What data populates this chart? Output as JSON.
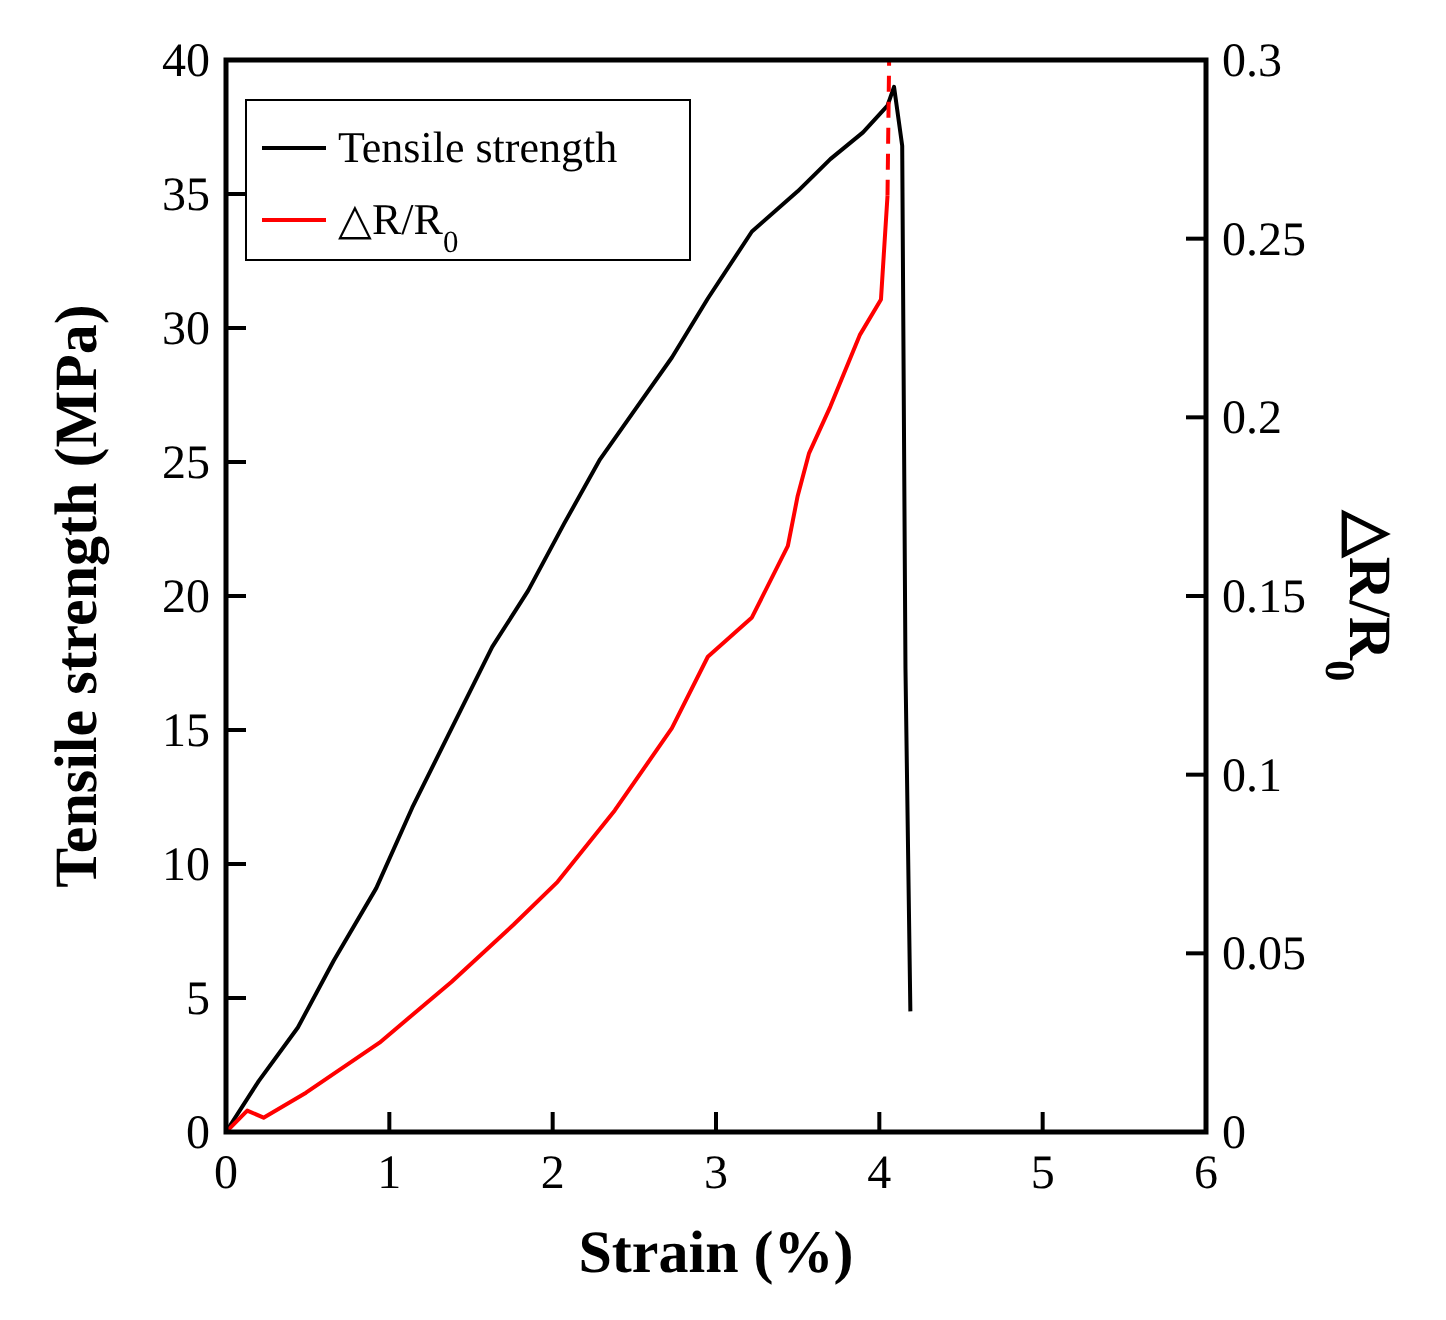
{
  "chart_data": {
    "type": "line",
    "xlabel": "Strain (%)",
    "ylabel": "Tensile strength (MPa)",
    "y2label": "△R/R$_{0}$",
    "xlim": [
      0,
      6
    ],
    "xticks": [
      0,
      1,
      2,
      3,
      4,
      5,
      6
    ],
    "ylim": [
      0,
      40
    ],
    "yticks": [
      0,
      5,
      10,
      15,
      20,
      25,
      30,
      35,
      40
    ],
    "y2lim": [
      0,
      0.3
    ],
    "y2ticks": [
      0,
      0.05,
      0.1,
      0.15,
      0.2,
      0.25,
      0.3
    ],
    "legend": "top left",
    "grid": false,
    "series": [
      {
        "name": "Tensile strength",
        "color": "#000000",
        "x": [
          0,
          0.2,
          0.44,
          0.66,
          0.92,
          1.14,
          1.36,
          1.63,
          1.85,
          2.07,
          2.29,
          2.51,
          2.73,
          2.95,
          3.22,
          3.5,
          3.7,
          3.9,
          4.05,
          4.09,
          4.14,
          4.16,
          4.19
        ],
        "values": [
          0,
          1.9,
          3.9,
          6.4,
          9.1,
          12.1,
          14.8,
          18.1,
          20.2,
          22.7,
          25.1,
          27,
          28.9,
          31.1,
          33.6,
          35.1,
          36.3,
          37.3,
          38.3,
          39,
          36.8,
          17.3,
          4.5
        ]
      },
      {
        "name": "△R/R$_{0}$",
        "color": "#ff0000",
        "axis": "y2",
        "x": [
          0,
          0.13,
          0.23,
          0.49,
          0.94,
          1.38,
          1.76,
          2.03,
          2.38,
          2.73,
          2.95,
          3.22,
          3.44,
          3.5,
          3.57,
          3.7,
          3.88,
          4.01,
          4.05
        ],
        "values": [
          0,
          0.006,
          0.004,
          0.011,
          0.025,
          0.042,
          0.058,
          0.07,
          0.09,
          0.113,
          0.133,
          0.144,
          0.164,
          0.178,
          0.19,
          0.203,
          0.223,
          0.233,
          0.262
        ]
      },
      {
        "color": "#ff0000",
        "axis": "y2",
        "line_style": "dashed",
        "x": [
          4.05,
          4.06
        ],
        "values": [
          0.262,
          0.3
        ]
      }
    ]
  }
}
